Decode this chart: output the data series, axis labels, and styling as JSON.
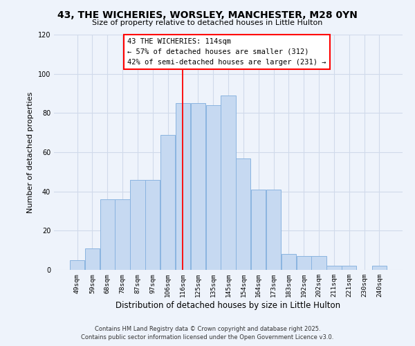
{
  "title": "43, THE WICHERIES, WORSLEY, MANCHESTER, M28 0YN",
  "subtitle": "Size of property relative to detached houses in Little Hulton",
  "xlabel": "Distribution of detached houses by size in Little Hulton",
  "ylabel": "Number of detached properties",
  "bar_color": "#c6d9f1",
  "bar_edgecolor": "#8ab4e0",
  "background_color": "#eef3fb",
  "grid_color": "#d0daea",
  "categories": [
    "49sqm",
    "59sqm",
    "68sqm",
    "78sqm",
    "87sqm",
    "97sqm",
    "106sqm",
    "116sqm",
    "125sqm",
    "135sqm",
    "145sqm",
    "154sqm",
    "164sqm",
    "173sqm",
    "183sqm",
    "192sqm",
    "202sqm",
    "211sqm",
    "221sqm",
    "230sqm",
    "240sqm"
  ],
  "values": [
    5,
    11,
    36,
    36,
    46,
    46,
    69,
    85,
    85,
    84,
    89,
    57,
    41,
    41,
    8,
    7,
    7,
    2,
    2,
    0,
    2
  ],
  "ylim": [
    0,
    120
  ],
  "yticks": [
    0,
    20,
    40,
    60,
    80,
    100,
    120
  ],
  "property_line_x": 7.0,
  "property_line_label": "43 THE WICHERIES: 114sqm",
  "annotation_line1": "← 57% of detached houses are smaller (312)",
  "annotation_line2": "42% of semi-detached houses are larger (231) →",
  "footer_line1": "Contains HM Land Registry data © Crown copyright and database right 2025.",
  "footer_line2": "Contains public sector information licensed under the Open Government Licence v3.0."
}
